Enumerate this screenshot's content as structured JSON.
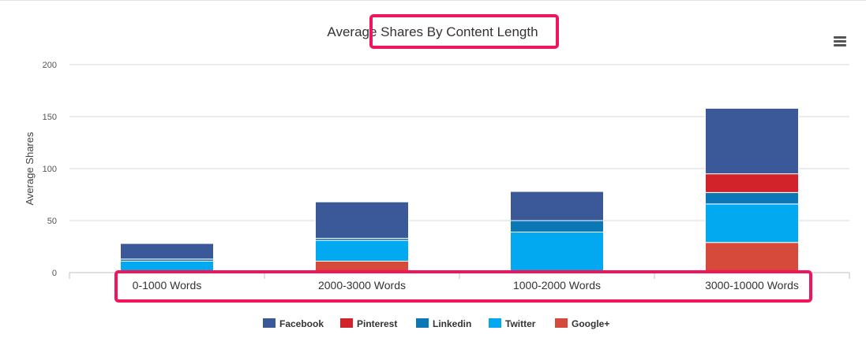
{
  "chart_data": {
    "type": "bar",
    "stacked": true,
    "title": "Average Shares By Content Length",
    "ylabel": "Average Shares",
    "xlabel": "",
    "ylim": [
      0,
      200
    ],
    "yticks": [
      0,
      50,
      100,
      150,
      200
    ],
    "grid": true,
    "legend_position": "bottom",
    "categories": [
      "0-1000 Words",
      "2000-3000 Words",
      "1000-2000 Words",
      "3000-10000 Words"
    ],
    "series": [
      {
        "name": "Google+",
        "color": "#d64a3b",
        "values": [
          0,
          11,
          1,
          29
        ]
      },
      {
        "name": "Twitter",
        "color": "#03a9f0",
        "values": [
          11,
          20,
          38,
          37
        ]
      },
      {
        "name": "Linkedin",
        "color": "#0b77b5",
        "values": [
          2,
          2,
          11,
          11
        ]
      },
      {
        "name": "Pinterest",
        "color": "#d2232a",
        "values": [
          0,
          0,
          0,
          18
        ]
      },
      {
        "name": "Facebook",
        "color": "#3b5998",
        "values": [
          15,
          35,
          28,
          63
        ]
      }
    ],
    "legend_order": [
      "Facebook",
      "Pinterest",
      "Linkedin",
      "Twitter",
      "Google+"
    ],
    "highlight_color": "#f0155a"
  },
  "menu_icon": "hamburger-menu-icon"
}
